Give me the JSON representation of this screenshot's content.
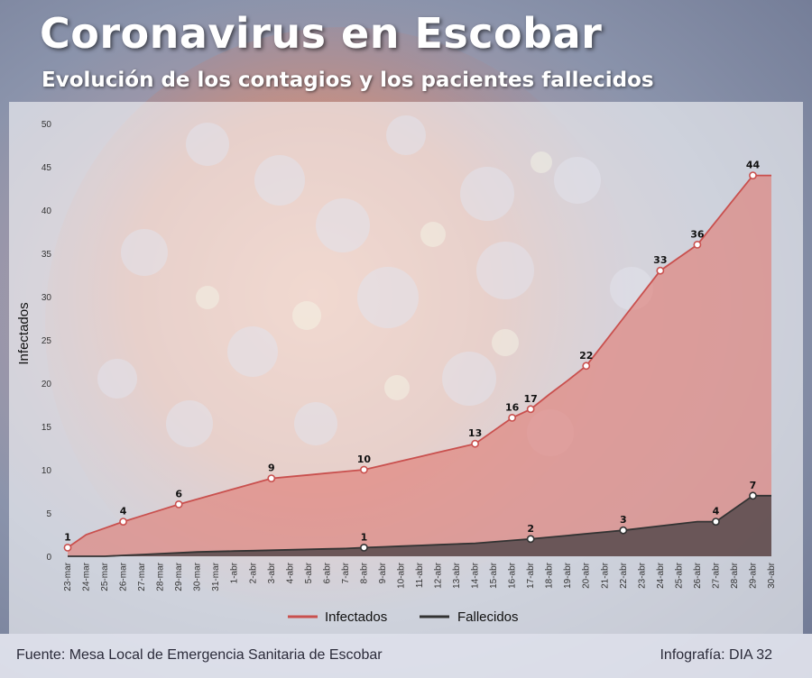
{
  "header": {
    "title": "Coronavirus en Escobar",
    "subtitle": "Evolución de los contagios y los pacientes fallecidos"
  },
  "footer": {
    "source": "Fuente: Mesa Local de Emergencia Sanitaria de Escobar",
    "credit": "Infografía: DIA 32"
  },
  "colors": {
    "infected": "#c9504e",
    "deceased": "#333333",
    "area_infected": "#e07a73",
    "area_deceased": "#4a4245"
  },
  "chart_data": {
    "type": "area",
    "title": "Coronavirus en Escobar",
    "subtitle": "Evolución de los contagios y los pacientes fallecidos",
    "xlabel": "",
    "ylabel": "Infectados",
    "ylim": [
      0,
      50
    ],
    "yticks": [
      0,
      5,
      10,
      15,
      20,
      25,
      30,
      35,
      40,
      45,
      50
    ],
    "grid": false,
    "legend_position": "bottom-center",
    "categories": [
      "23-mar",
      "24-mar",
      "25-mar",
      "26-mar",
      "27-mar",
      "28-mar",
      "29-mar",
      "30-mar",
      "31-mar",
      "1-abr",
      "2-abr",
      "3-abr",
      "4-abr",
      "5-abr",
      "6-abr",
      "7-abr",
      "8-abr",
      "9-abr",
      "10-abr",
      "11-abr",
      "12-abr",
      "13-abr",
      "14-abr",
      "15-abr",
      "16-abr",
      "17-abr",
      "18-abr",
      "19-abr",
      "20-abr",
      "21-abr",
      "22-abr",
      "23-abr",
      "24-abr",
      "25-abr",
      "26-abr",
      "27-abr",
      "28-abr",
      "29-abr",
      "30-abr"
    ],
    "series": [
      {
        "name": "Infectados",
        "color": "#c9504e",
        "values": [
          1,
          2.5,
          3.25,
          4,
          4.67,
          5.33,
          6,
          6.6,
          7.2,
          7.8,
          8.4,
          9,
          9.2,
          9.4,
          9.6,
          9.8,
          10,
          10.5,
          11,
          11.5,
          12,
          12.5,
          13,
          14.5,
          16,
          17,
          18.7,
          20.3,
          22,
          24.75,
          27.5,
          30.25,
          33,
          34.5,
          36,
          38.67,
          41.33,
          44,
          44
        ],
        "points": [
          {
            "x": "23-mar",
            "y": 1
          },
          {
            "x": "26-mar",
            "y": 4
          },
          {
            "x": "29-mar",
            "y": 6
          },
          {
            "x": "3-abr",
            "y": 9
          },
          {
            "x": "8-abr",
            "y": 10
          },
          {
            "x": "14-abr",
            "y": 13
          },
          {
            "x": "16-abr",
            "y": 16
          },
          {
            "x": "17-abr",
            "y": 17
          },
          {
            "x": "20-abr",
            "y": 22
          },
          {
            "x": "24-abr",
            "y": 33
          },
          {
            "x": "26-abr",
            "y": 36
          },
          {
            "x": "29-abr",
            "y": 44
          }
        ]
      },
      {
        "name": "Fallecidos",
        "color": "#333333",
        "values": [
          0,
          0,
          0,
          0.1,
          0.2,
          0.3,
          0.4,
          0.5,
          0.55,
          0.6,
          0.65,
          0.7,
          0.75,
          0.8,
          0.85,
          0.9,
          1,
          1.08,
          1.17,
          1.25,
          1.33,
          1.42,
          1.5,
          1.67,
          1.83,
          2,
          2.2,
          2.4,
          2.6,
          2.8,
          3,
          3.25,
          3.5,
          3.75,
          4,
          4,
          5.5,
          7,
          7
        ],
        "points": [
          {
            "x": "8-abr",
            "y": 1
          },
          {
            "x": "17-abr",
            "y": 2
          },
          {
            "x": "22-abr",
            "y": 3
          },
          {
            "x": "27-abr",
            "y": 4
          },
          {
            "x": "29-abr",
            "y": 7
          }
        ]
      }
    ]
  }
}
